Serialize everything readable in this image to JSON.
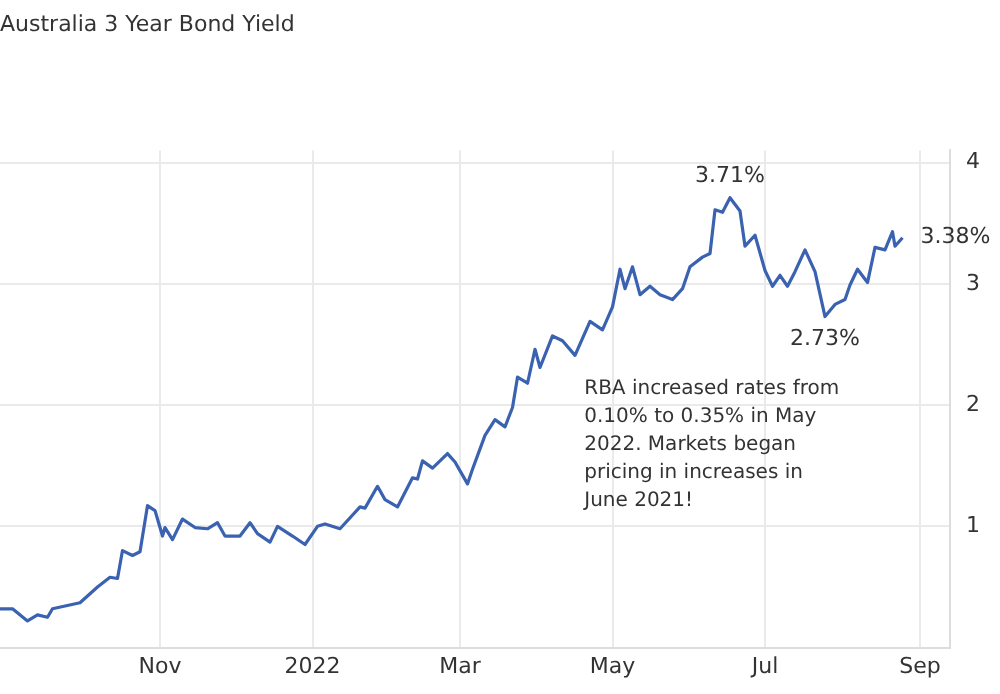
{
  "chart_data": {
    "type": "line",
    "title": "Australia 3 Year Bond Yield",
    "x": [
      "2021-08-29",
      "2021-09-03",
      "2021-09-09",
      "2021-09-13",
      "2021-09-17",
      "2021-09-19",
      "2021-09-30",
      "2021-10-07",
      "2021-10-12",
      "2021-10-15",
      "2021-10-17",
      "2021-10-21",
      "2021-10-24",
      "2021-10-27",
      "2021-10-30",
      "2021-11-02",
      "2021-11-03",
      "2021-11-06",
      "2021-11-10",
      "2021-11-15",
      "2021-11-20",
      "2021-11-24",
      "2021-11-27",
      "2021-12-03",
      "2021-12-07",
      "2021-12-10",
      "2021-12-15",
      "2021-12-18",
      "2021-12-24",
      "2021-12-29",
      "2022-01-03",
      "2022-01-06",
      "2022-01-12",
      "2022-01-20",
      "2022-01-22",
      "2022-01-27",
      "2022-01-30",
      "2022-02-04",
      "2022-02-10",
      "2022-02-12",
      "2022-02-14",
      "2022-02-18",
      "2022-02-24",
      "2022-02-27",
      "2022-03-04",
      "2022-03-06",
      "2022-03-11",
      "2022-03-15",
      "2022-03-19",
      "2022-03-22",
      "2022-03-24",
      "2022-03-28",
      "2022-03-31",
      "2022-04-02",
      "2022-04-07",
      "2022-04-11",
      "2022-04-16",
      "2022-04-22",
      "2022-04-27",
      "2022-05-01",
      "2022-05-04",
      "2022-05-06",
      "2022-05-09",
      "2022-05-12",
      "2022-05-16",
      "2022-05-20",
      "2022-05-25",
      "2022-05-29",
      "2022-06-01",
      "2022-06-06",
      "2022-06-09",
      "2022-06-11",
      "2022-06-14",
      "2022-06-17",
      "2022-06-21",
      "2022-06-23",
      "2022-06-27",
      "2022-07-01",
      "2022-07-04",
      "2022-07-07",
      "2022-07-10",
      "2022-07-13",
      "2022-07-17",
      "2022-07-21",
      "2022-07-25",
      "2022-07-29",
      "2022-08-02",
      "2022-08-04",
      "2022-08-07",
      "2022-08-11",
      "2022-08-14",
      "2022-08-18",
      "2022-08-21",
      "2022-08-22",
      "2022-08-25"
    ],
    "series": [
      {
        "color": "#3a62b0",
        "values": [
          0.32,
          0.32,
          0.22,
          0.27,
          0.25,
          0.32,
          0.37,
          0.5,
          0.58,
          0.57,
          0.8,
          0.76,
          0.79,
          1.17,
          1.13,
          0.92,
          0.99,
          0.89,
          1.06,
          0.99,
          0.98,
          1.03,
          0.92,
          0.92,
          1.03,
          0.94,
          0.87,
          1.0,
          0.92,
          0.85,
          1.0,
          1.02,
          0.98,
          1.16,
          1.15,
          1.33,
          1.22,
          1.16,
          1.4,
          1.39,
          1.54,
          1.48,
          1.6,
          1.53,
          1.35,
          1.47,
          1.75,
          1.88,
          1.82,
          1.98,
          2.23,
          2.18,
          2.46,
          2.31,
          2.57,
          2.53,
          2.41,
          2.69,
          2.62,
          2.81,
          3.12,
          2.96,
          3.14,
          2.91,
          2.98,
          2.91,
          2.87,
          2.96,
          3.14,
          3.22,
          3.25,
          3.61,
          3.59,
          3.71,
          3.6,
          3.31,
          3.4,
          3.11,
          2.98,
          3.07,
          2.98,
          3.1,
          3.28,
          3.1,
          2.73,
          2.83,
          2.87,
          2.99,
          3.12,
          3.01,
          3.3,
          3.28,
          3.43,
          3.31,
          3.38
        ]
      }
    ],
    "xlim": [
      "2021-08-29",
      "2022-09-13"
    ],
    "xticks": [
      {
        "value": "2021-11-01",
        "label": "Nov"
      },
      {
        "value": "2022-01-01",
        "label": "2022"
      },
      {
        "value": "2022-03-01",
        "label": "Mar"
      },
      {
        "value": "2022-05-01",
        "label": "May"
      },
      {
        "value": "2022-07-01",
        "label": "Jul"
      },
      {
        "value": "2022-09-01",
        "label": "Sep"
      }
    ],
    "ylim": [
      0,
      4.1
    ],
    "yticks": [
      1,
      2,
      3,
      4
    ],
    "grid": true,
    "legend": false,
    "marker": "none",
    "line_style": "solid",
    "annotations": [
      {
        "text": "3.71%",
        "x": "2022-06-17",
        "y": 3.71
      },
      {
        "text": "2.73%",
        "x": "2022-07-25",
        "y": 2.73
      },
      {
        "text": "3.38%",
        "x": "2022-08-25",
        "y": 3.38
      },
      "RBA increased rates from 0.10% to 0.35% in May 2022. Markets began pricing in increases in June 2021!"
    ]
  }
}
